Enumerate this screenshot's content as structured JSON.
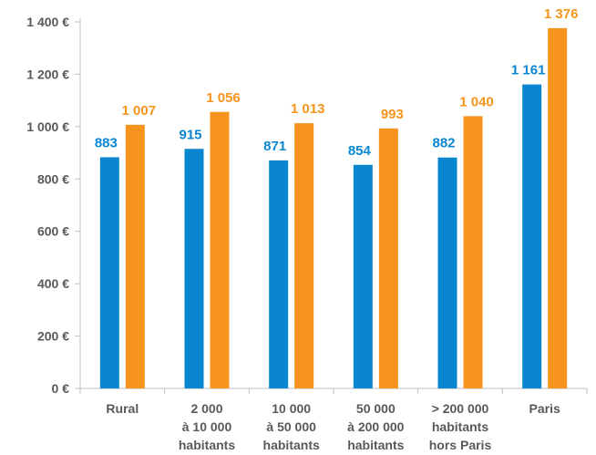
{
  "chart_data": {
    "type": "bar",
    "categories": [
      [
        "Rural"
      ],
      [
        "2 000",
        "à 10 000",
        "habitants"
      ],
      [
        "10 000",
        "à 50 000",
        "habitants"
      ],
      [
        "50 000",
        "à 200 000",
        "habitants"
      ],
      [
        "> 200 000",
        "habitants",
        "hors Paris"
      ],
      [
        "Paris"
      ]
    ],
    "series": [
      {
        "values": [
          883,
          915,
          871,
          854,
          882,
          1161
        ],
        "labels": [
          "883",
          "915",
          "871",
          "854",
          "882",
          "1 161"
        ],
        "color": "#0a86d0"
      },
      {
        "values": [
          1007,
          1056,
          1013,
          993,
          1040,
          1376
        ],
        "labels": [
          "1 007",
          "1 056",
          "1 013",
          "993",
          "1 040",
          "1 376"
        ],
        "color": "#f7941d"
      }
    ],
    "ylim": [
      0,
      1400
    ],
    "yticks": [
      0,
      200,
      400,
      600,
      800,
      1000,
      1200,
      1400
    ],
    "ytick_labels": [
      "0 €",
      "200 €",
      "400 €",
      "600 €",
      "800 €",
      "1 000 €",
      "1 200 €",
      "1 400 €"
    ],
    "grid": false,
    "axis_color": "#bfbfbf",
    "text_color": "#595959"
  }
}
